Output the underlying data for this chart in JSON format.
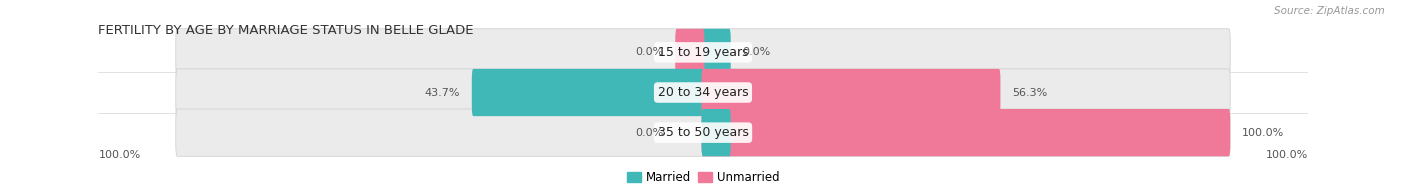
{
  "title": "FERTILITY BY AGE BY MARRIAGE STATUS IN BELLE GLADE",
  "source": "Source: ZipAtlas.com",
  "categories": [
    "15 to 19 years",
    "20 to 34 years",
    "35 to 50 years"
  ],
  "married": [
    0.0,
    43.7,
    0.0
  ],
  "unmarried": [
    0.0,
    56.3,
    100.0
  ],
  "married_color": "#41b8b8",
  "unmarried_color": "#f07898",
  "bar_bg_color": "#ebebeb",
  "bar_bg_stroke": "#d8d8d8",
  "bar_height": 0.62,
  "title_fontsize": 9.5,
  "source_fontsize": 7.5,
  "label_fontsize": 8,
  "category_fontsize": 9,
  "legend_fontsize": 8.5,
  "axis_label_left": "100.0%",
  "axis_label_right": "100.0%",
  "married_label": "Married",
  "unmarried_label": "Unmarried"
}
